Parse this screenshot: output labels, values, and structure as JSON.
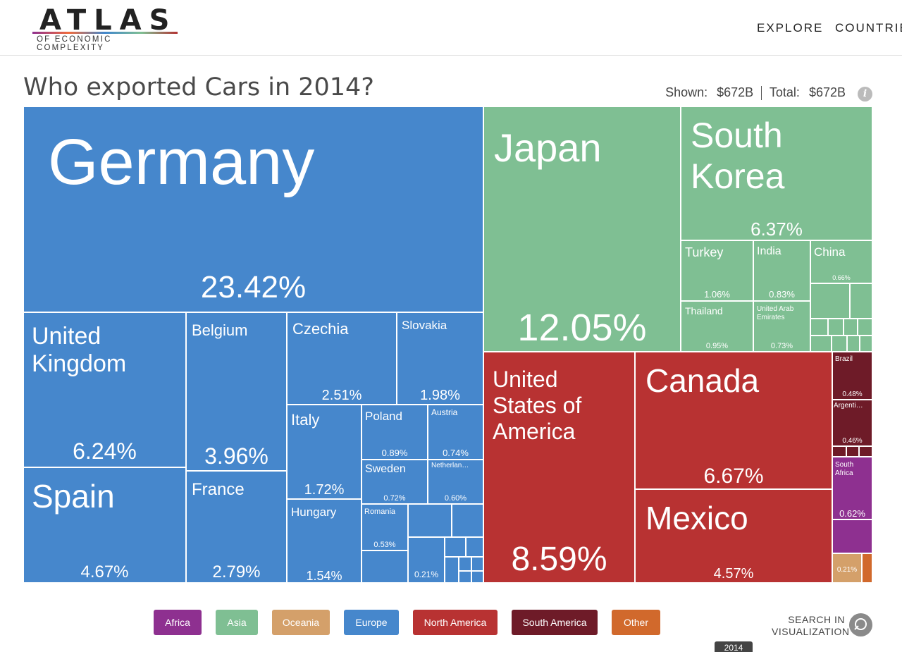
{
  "header": {
    "logo_main": "ATLAS",
    "logo_sub": "OF ECONOMIC COMPLEXITY",
    "nav": [
      "EXPLORE",
      "COUNTRIE"
    ]
  },
  "title": "Who exported Cars in 2014?",
  "totals": {
    "shown_label": "Shown:",
    "shown_value": "$672B",
    "total_label": "Total:",
    "total_value": "$672B"
  },
  "info_icon": "i",
  "search_label_1": "SEARCH IN",
  "search_label_2": "VISUALIZATION",
  "year_tab": "2014",
  "colors": {
    "Africa": "#8e3090",
    "Asia": "#7fbf93",
    "Oceania": "#d4a06a",
    "Europe": "#4687cc",
    "North America": "#b83232",
    "South America": "#6e1b28",
    "Other": "#d1692c"
  },
  "legend": [
    "Africa",
    "Asia",
    "Oceania",
    "Europe",
    "North America",
    "South America",
    "Other"
  ],
  "chart_data": {
    "type": "treemap",
    "title": "Who exported Cars in 2014?",
    "unit": "% of exports",
    "items": [
      {
        "name": "Germany",
        "region": "Europe",
        "value": 23.42
      },
      {
        "name": "United Kingdom",
        "region": "Europe",
        "value": 6.24
      },
      {
        "name": "Spain",
        "region": "Europe",
        "value": 4.67
      },
      {
        "name": "Belgium",
        "region": "Europe",
        "value": 3.96
      },
      {
        "name": "France",
        "region": "Europe",
        "value": 2.79
      },
      {
        "name": "Czechia",
        "region": "Europe",
        "value": 2.51
      },
      {
        "name": "Slovakia",
        "region": "Europe",
        "value": 1.98
      },
      {
        "name": "Italy",
        "region": "Europe",
        "value": 1.72
      },
      {
        "name": "Hungary",
        "region": "Europe",
        "value": 1.54
      },
      {
        "name": "Poland",
        "region": "Europe",
        "value": 0.89
      },
      {
        "name": "Austria",
        "region": "Europe",
        "value": 0.74
      },
      {
        "name": "Sweden",
        "region": "Europe",
        "value": 0.72
      },
      {
        "name": "Netherlan…",
        "region": "Europe",
        "value": 0.6
      },
      {
        "name": "Romania",
        "region": "Europe",
        "value": 0.53
      },
      {
        "name": "",
        "region": "Europe",
        "value": 0.21
      },
      {
        "name": "Japan",
        "region": "Asia",
        "value": 12.05
      },
      {
        "name": "South Korea",
        "region": "Asia",
        "value": 6.37
      },
      {
        "name": "Turkey",
        "region": "Asia",
        "value": 1.06
      },
      {
        "name": "India",
        "region": "Asia",
        "value": 0.83
      },
      {
        "name": "China",
        "region": "Asia",
        "value": 0.66
      },
      {
        "name": "Thailand",
        "region": "Asia",
        "value": 0.95
      },
      {
        "name": "United Arab Emirates",
        "region": "Asia",
        "value": 0.73
      },
      {
        "name": "United States of America",
        "region": "North America",
        "value": 8.59
      },
      {
        "name": "Canada",
        "region": "North America",
        "value": 6.67
      },
      {
        "name": "Mexico",
        "region": "North America",
        "value": 4.57
      },
      {
        "name": "Brazil",
        "region": "South America",
        "value": 0.48
      },
      {
        "name": "Argenti…",
        "region": "South America",
        "value": 0.46
      },
      {
        "name": "South Africa",
        "region": "Africa",
        "value": 0.62
      },
      {
        "name": "",
        "region": "Oceania",
        "value": 0.21
      }
    ]
  },
  "cell_labels": {
    "germany": {
      "name": "Germany",
      "pct": "23.42%"
    },
    "uk": {
      "name": "United\nKingdom",
      "pct": "6.24%"
    },
    "spain": {
      "name": "Spain",
      "pct": "4.67%"
    },
    "belgium": {
      "name": "Belgium",
      "pct": "3.96%"
    },
    "france": {
      "name": "France",
      "pct": "2.79%"
    },
    "czechia": {
      "name": "Czechia",
      "pct": "2.51%"
    },
    "slovakia": {
      "name": "Slovakia",
      "pct": "1.98%"
    },
    "italy": {
      "name": "Italy",
      "pct": "1.72%"
    },
    "hungary": {
      "name": "Hungary",
      "pct": "1.54%"
    },
    "poland": {
      "name": "Poland",
      "pct": "0.89%"
    },
    "austria": {
      "name": "Austria",
      "pct": "0.74%"
    },
    "sweden": {
      "name": "Sweden",
      "pct": "0.72%"
    },
    "netherlands": {
      "name": "Netherlan…",
      "pct": "0.60%"
    },
    "romania": {
      "name": "Romania",
      "pct": "0.53%"
    },
    "eu_small": {
      "name": "",
      "pct": "0.21%"
    },
    "japan": {
      "name": "Japan",
      "pct": "12.05%"
    },
    "skorea": {
      "name": "South\nKorea",
      "pct": "6.37%"
    },
    "turkey": {
      "name": "Turkey",
      "pct": "1.06%"
    },
    "india": {
      "name": "India",
      "pct": "0.83%"
    },
    "china": {
      "name": "China",
      "pct": "0.66%"
    },
    "thailand": {
      "name": "Thailand",
      "pct": "0.95%"
    },
    "uae": {
      "name": "United Arab\nEmirates",
      "pct": "0.73%"
    },
    "usa": {
      "name": "United\nStates of\nAmerica",
      "pct": "8.59%"
    },
    "canada": {
      "name": "Canada",
      "pct": "6.67%"
    },
    "mexico": {
      "name": "Mexico",
      "pct": "4.57%"
    },
    "brazil": {
      "name": "Brazil",
      "pct": "0.48%"
    },
    "argentina": {
      "name": "Argenti…",
      "pct": "0.46%"
    },
    "safrica": {
      "name": "South\nAfrica",
      "pct": "0.62%"
    },
    "oceania_small": {
      "name": "",
      "pct": "0.21%"
    }
  }
}
